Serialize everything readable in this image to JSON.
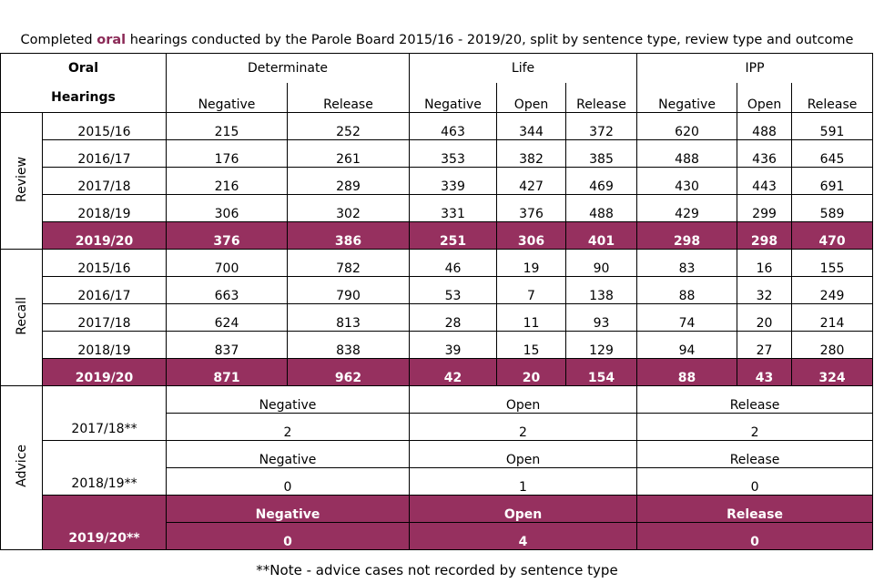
{
  "title": {
    "before": "Completed ",
    "highlight": "oral",
    "after": " hearings conducted by the Parole Board 2015/16 - 2019/20, split by sentence type, review type and outcome"
  },
  "header": {
    "corner": [
      "Oral",
      "Hearings"
    ],
    "groups": [
      "Determinate",
      "Life",
      "IPP"
    ],
    "columns": [
      "Negative",
      "Release",
      "Negative",
      "Open",
      "Release",
      "Negative",
      "Open",
      "Release"
    ]
  },
  "sections": [
    {
      "label": "Review",
      "rows": [
        {
          "year": "2015/16",
          "values": [
            215,
            252,
            463,
            344,
            372,
            620,
            488,
            591
          ]
        },
        {
          "year": "2016/17",
          "values": [
            176,
            261,
            353,
            382,
            385,
            488,
            436,
            645
          ]
        },
        {
          "year": "2017/18",
          "values": [
            216,
            289,
            339,
            427,
            469,
            430,
            443,
            691
          ]
        },
        {
          "year": "2018/19",
          "values": [
            306,
            302,
            331,
            376,
            488,
            429,
            299,
            589
          ]
        },
        {
          "year": "2019/20",
          "values": [
            376,
            386,
            251,
            306,
            401,
            298,
            298,
            470
          ]
        }
      ]
    },
    {
      "label": "Recall",
      "rows": [
        {
          "year": "2015/16",
          "values": [
            700,
            782,
            46,
            19,
            90,
            83,
            16,
            155
          ]
        },
        {
          "year": "2016/17",
          "values": [
            663,
            790,
            53,
            7,
            138,
            88,
            32,
            249
          ]
        },
        {
          "year": "2017/18",
          "values": [
            624,
            813,
            28,
            11,
            93,
            74,
            20,
            214
          ]
        },
        {
          "year": "2018/19",
          "values": [
            837,
            838,
            39,
            15,
            129,
            94,
            27,
            280
          ]
        },
        {
          "year": "2019/20",
          "values": [
            871,
            962,
            42,
            20,
            154,
            88,
            43,
            324
          ]
        }
      ]
    }
  ],
  "advice": {
    "label": "Advice",
    "rows": [
      {
        "year": "2017/18**",
        "labels": [
          "Negative",
          "Open",
          "Release"
        ],
        "values": [
          2,
          2,
          2
        ]
      },
      {
        "year": "2018/19**",
        "labels": [
          "Negative",
          "Open",
          "Release"
        ],
        "values": [
          0,
          1,
          0
        ]
      },
      {
        "year": "2019/20**",
        "labels": [
          "Negative",
          "Open",
          "Release"
        ],
        "values": [
          0,
          4,
          0
        ]
      }
    ]
  },
  "note": "**Note - advice cases not recorded by sentence type"
}
